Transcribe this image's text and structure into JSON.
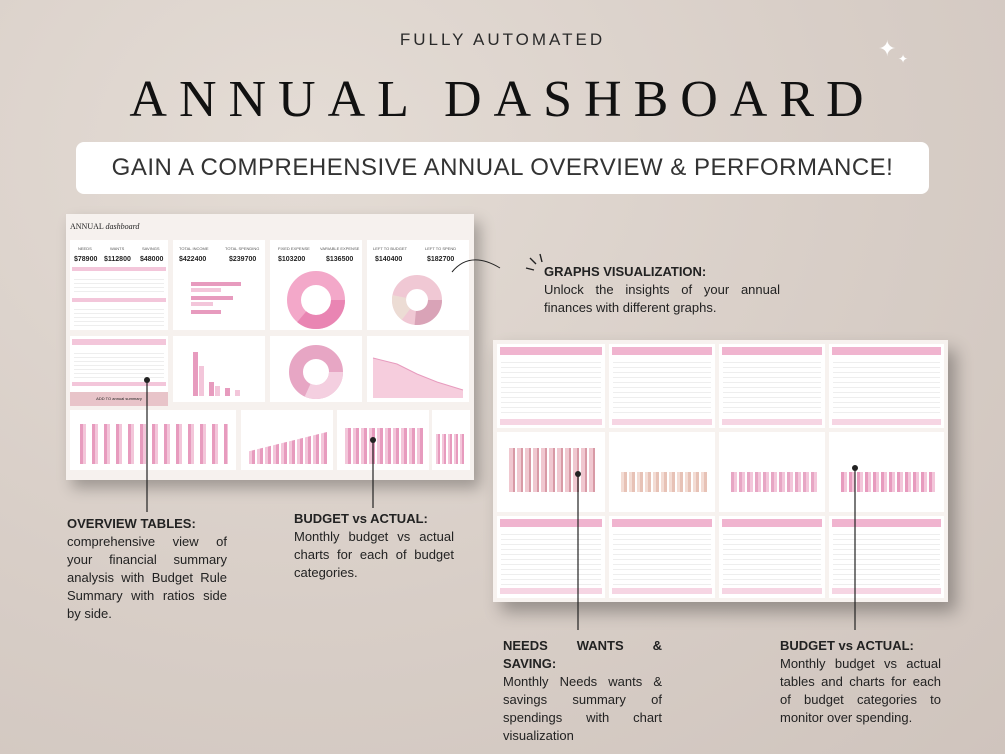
{
  "header": {
    "kicker": "FULLY AUTOMATED",
    "title": "ANNUAL DASHBOARD",
    "banner": "GAIN A COMPREHENSIVE ANNUAL OVERVIEW & PERFORMANCE!"
  },
  "dashboard1": {
    "title_a": "ANNUAL",
    "title_b": "dashboard",
    "kpis": [
      {
        "label": "NEEDS",
        "value": "$78900"
      },
      {
        "label": "WANTS",
        "value": "$112800"
      },
      {
        "label": "SAVINGS",
        "value": "$48000"
      },
      {
        "label": "TOTAL INCOME",
        "value": "$422400"
      },
      {
        "label": "TOTAL SPENDING",
        "value": "$239700"
      },
      {
        "label": "FIXED EXPENSE",
        "value": "$103200"
      },
      {
        "label": "VARIABLE EXPENSE",
        "value": "$136500"
      },
      {
        "label": "LEFT TO BUDGET",
        "value": "$140400"
      },
      {
        "label": "LEFT TO SPEND",
        "value": "$182700"
      }
    ],
    "add_note": "ADD TO  annual summary"
  },
  "callouts": {
    "graphs": {
      "heading": "GRAPHS VISUALIZATION:",
      "body": "Unlock the insights of your annual finances with different graphs."
    },
    "overview": {
      "heading": "OVERVIEW TABLES:",
      "body": "comprehensive view of your financial summary analysis with Budget Rule Summary with ratios side by side."
    },
    "budget1": {
      "heading": "BUDGET vs ACTUAL:",
      "body": "Monthly budget vs actual charts for each of budget categories."
    },
    "needs": {
      "heading": "NEEDS WANTS & SAVING:",
      "body": "Monthly Needs wants & savings summary of spendings with chart visualization"
    },
    "budget2": {
      "heading": "BUDGET vs ACTUAL:",
      "body": "Monthly budget vs actual tables and charts for each of budget categories to monitor over spending."
    }
  },
  "colors": {
    "pink": "#f3c6da",
    "hot_pink": "#e79bbe"
  }
}
